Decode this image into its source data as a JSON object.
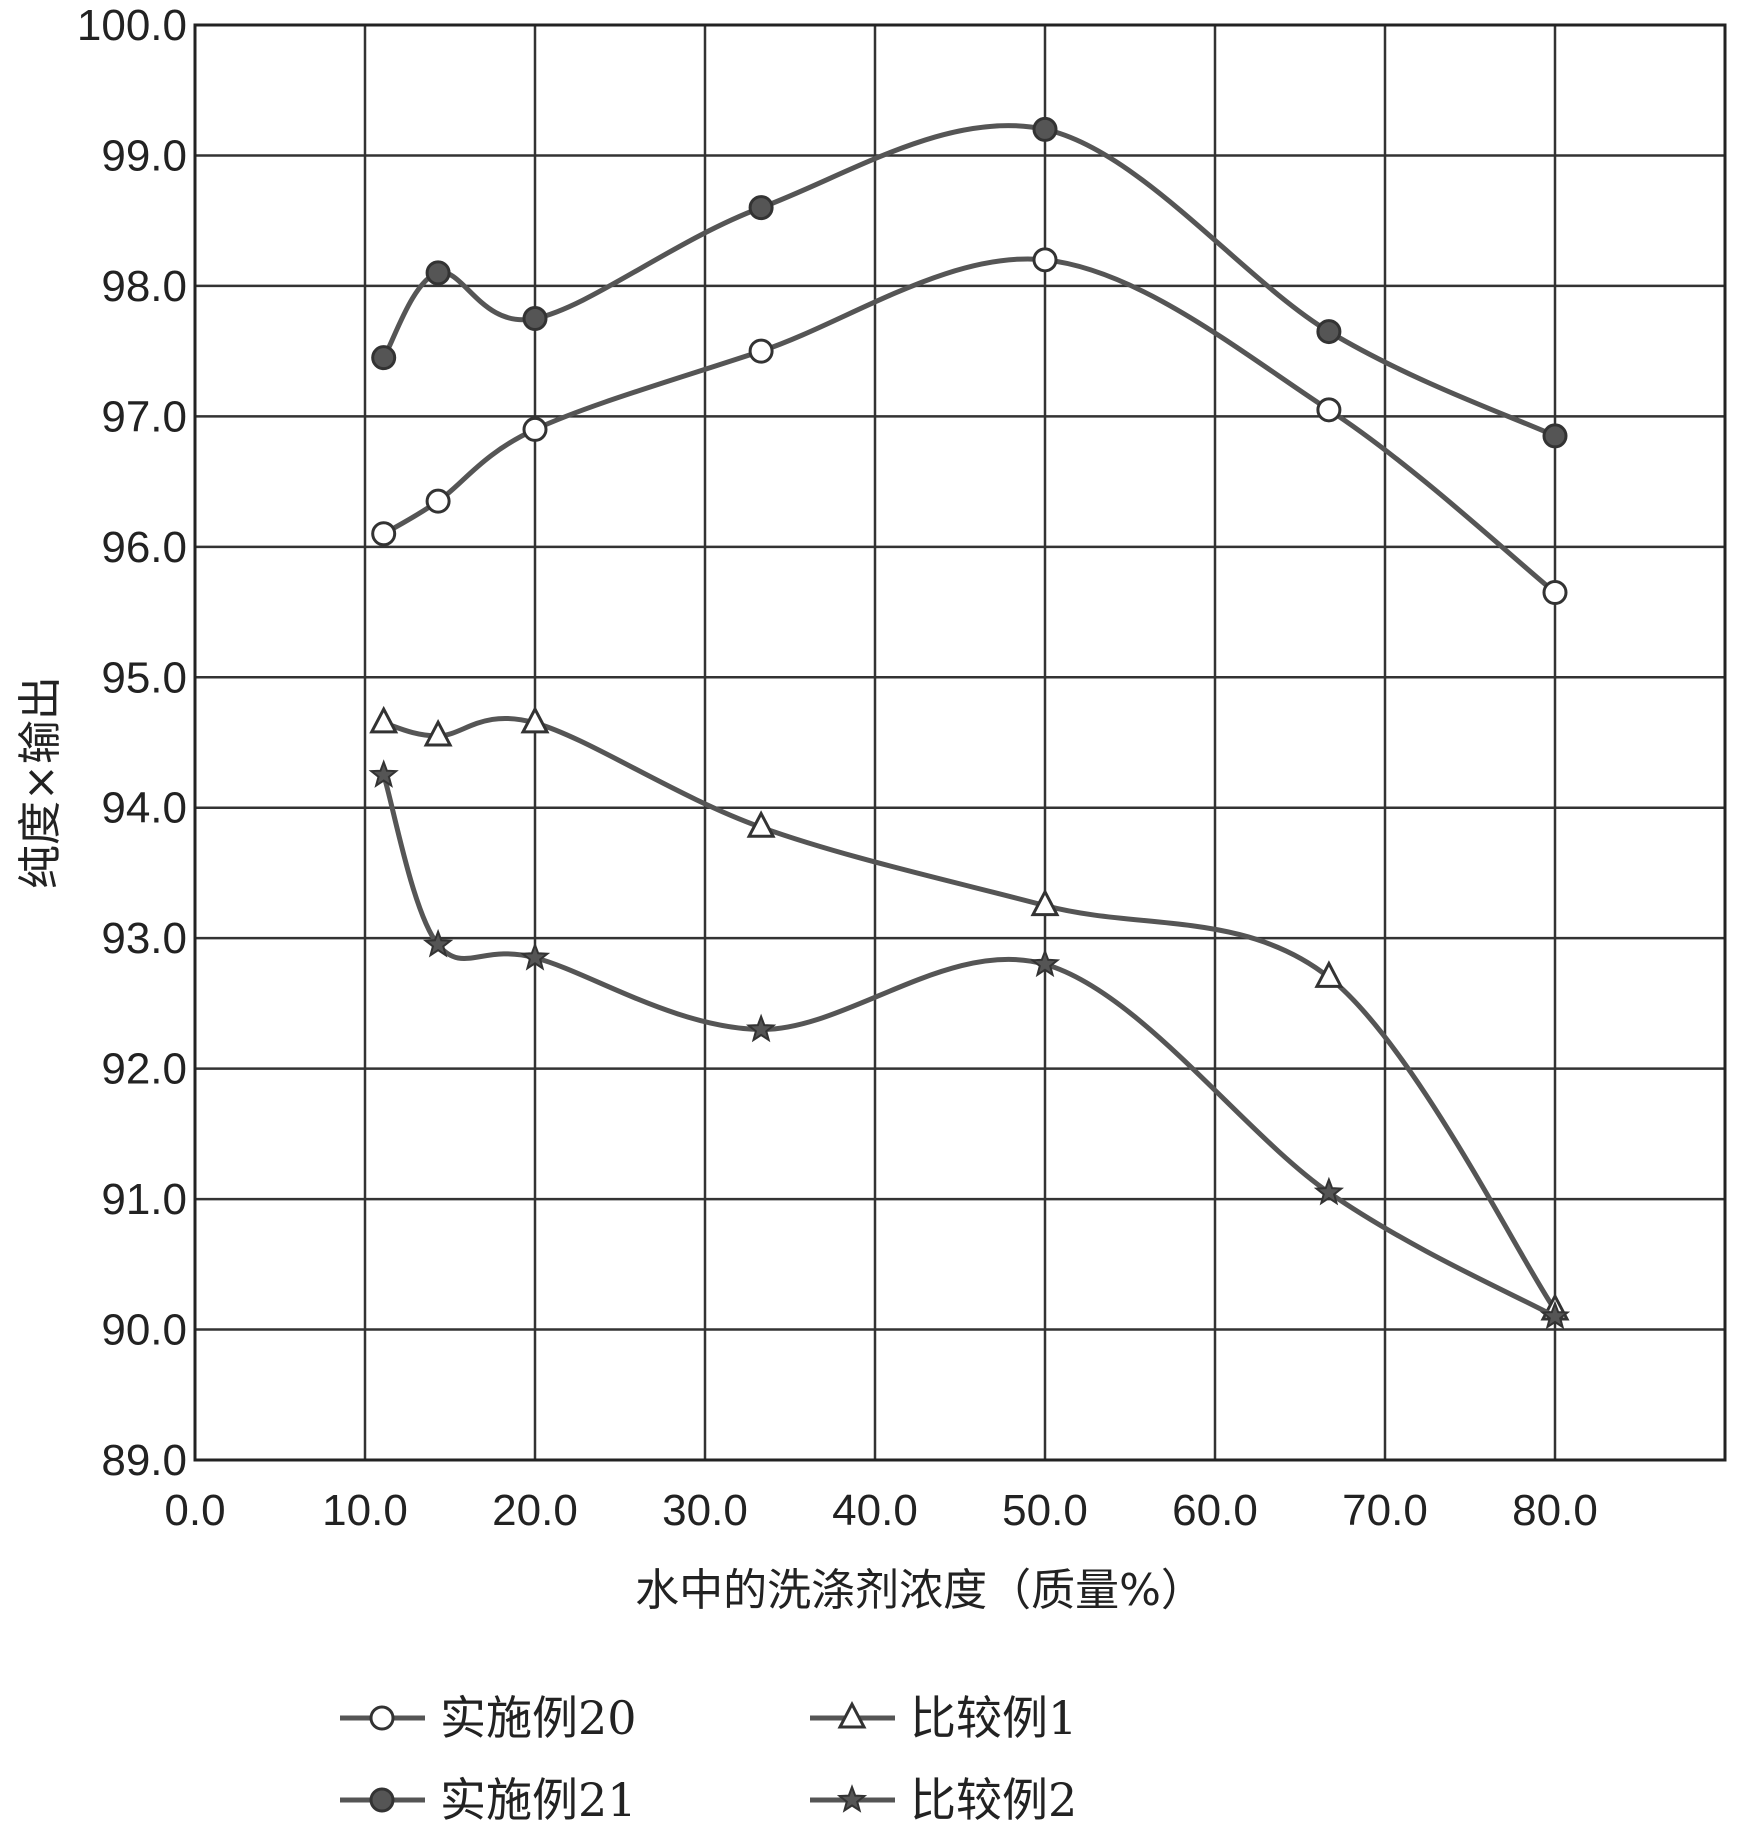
{
  "chart_data": {
    "type": "line",
    "xlabel": "水中的洗涤剂浓度（质量%）",
    "ylabel": "纯度×输出",
    "xlim": [
      0,
      90
    ],
    "ylim": [
      89,
      100
    ],
    "x_ticks": [
      "0.0",
      "10.0",
      "20.0",
      "30.0",
      "40.0",
      "50.0",
      "60.0",
      "70.0",
      "80.0"
    ],
    "y_ticks": [
      "89.0",
      "90.0",
      "91.0",
      "92.0",
      "93.0",
      "94.0",
      "95.0",
      "96.0",
      "97.0",
      "98.0",
      "99.0",
      "100.0"
    ],
    "grid": true,
    "legend_position": "bottom",
    "series": [
      {
        "name": "实施例20",
        "marker": "circle-open",
        "x": [
          11.1,
          14.3,
          20.0,
          33.3,
          50.0,
          66.7,
          80.0
        ],
        "y": [
          96.1,
          96.35,
          96.9,
          97.5,
          98.2,
          97.05,
          95.65
        ]
      },
      {
        "name": "实施例21",
        "marker": "circle-filled",
        "x": [
          11.1,
          14.3,
          20.0,
          33.3,
          50.0,
          66.7,
          80.0
        ],
        "y": [
          97.45,
          98.1,
          97.75,
          98.6,
          99.2,
          97.65,
          96.85
        ]
      },
      {
        "name": "比较例1",
        "marker": "triangle-open",
        "x": [
          11.1,
          14.3,
          20.0,
          33.3,
          50.0,
          66.7,
          80.0
        ],
        "y": [
          94.65,
          94.55,
          94.65,
          93.85,
          93.25,
          92.7,
          90.15
        ]
      },
      {
        "name": "比较例2",
        "marker": "star",
        "x": [
          11.1,
          14.3,
          20.0,
          33.3,
          50.0,
          66.7,
          80.0
        ],
        "y": [
          94.25,
          92.95,
          92.85,
          92.3,
          92.8,
          91.05,
          90.1
        ]
      }
    ]
  },
  "colors": {
    "line": "#555555",
    "marker_stroke": "#333333",
    "marker_fill_filled": "#555555",
    "marker_fill_open": "#ffffff",
    "grid": "#333333"
  }
}
